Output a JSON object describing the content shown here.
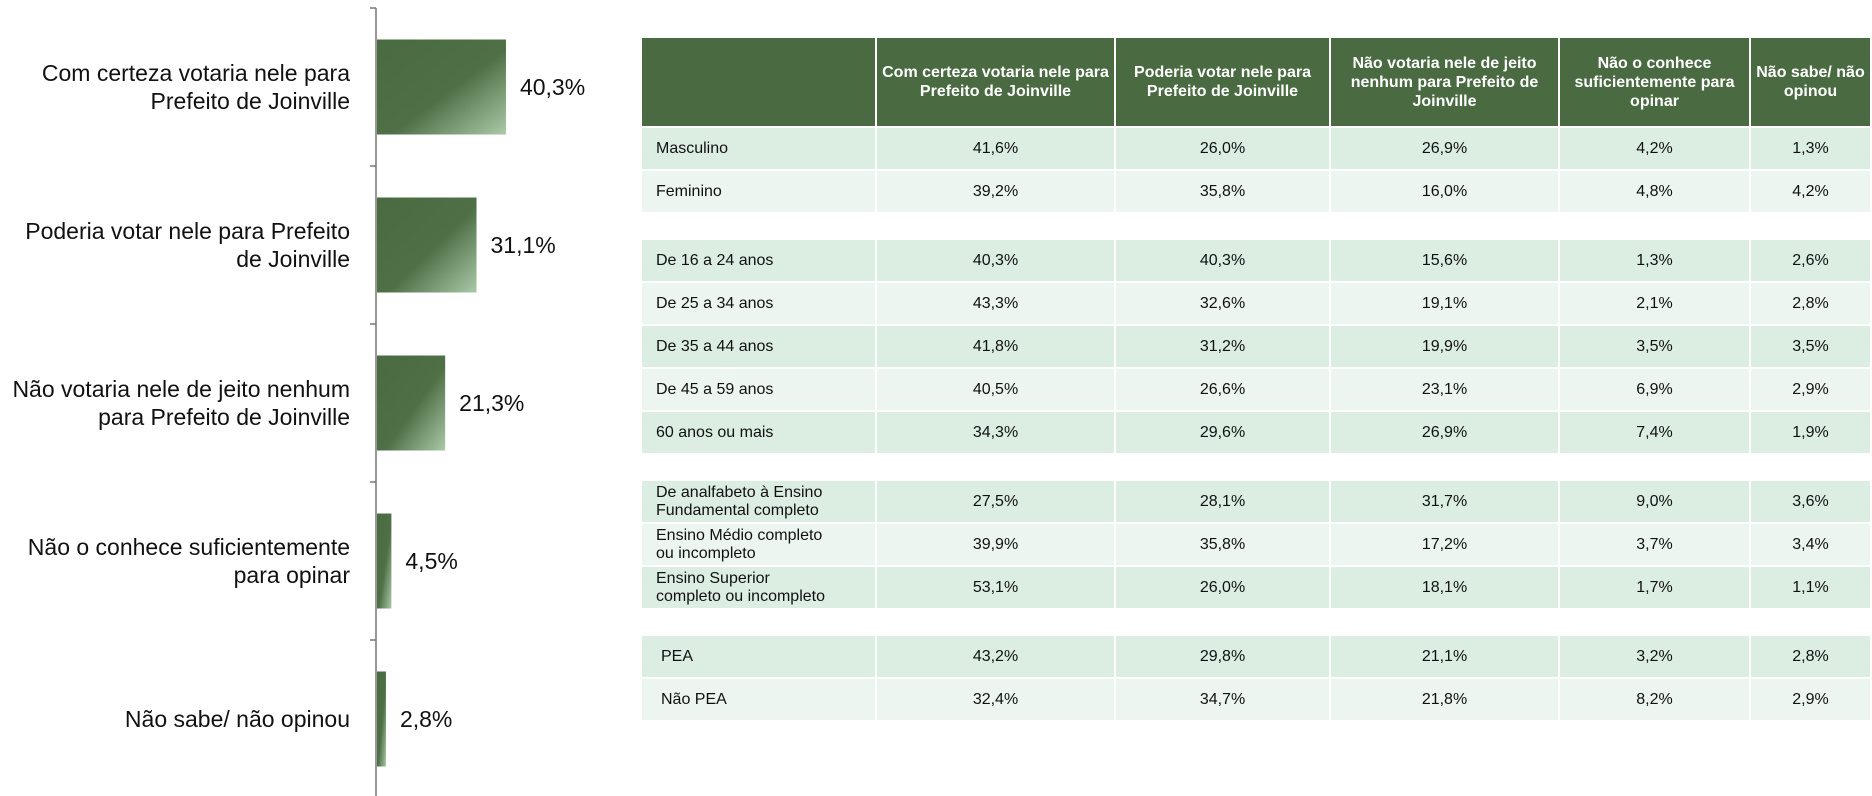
{
  "chart_data": {
    "type": "bar",
    "orientation": "horizontal",
    "categories": [
      "Com certeza votaria nele para Prefeito de Joinville",
      "Poderia votar nele para Prefeito de Joinville",
      "Não votaria nele de jeito nenhum para Prefeito de Joinville",
      "Não o conhece suficientemente para opinar",
      "Não sabe/ não opinou"
    ],
    "values": [
      40.3,
      31.1,
      21.3,
      4.5,
      2.8
    ],
    "value_labels": [
      "40,3%",
      "31,1%",
      "21,3%",
      "4,5%",
      "2,8%"
    ],
    "color": "#4a6b41"
  },
  "table": {
    "columns": [
      "Com certeza votaria nele para Prefeito de Joinville",
      "Poderia votar nele para Prefeito de Joinville",
      "Não votaria nele de jeito nenhum para Prefeito de Joinville",
      "Não o conhece suficientemente para opinar",
      "Não sabe/ não opinou"
    ],
    "groups": [
      [
        {
          "label": "Masculino",
          "values": [
            "41,6%",
            "26,0%",
            "26,9%",
            "4,2%",
            "1,3%"
          ]
        },
        {
          "label": "Feminino",
          "values": [
            "39,2%",
            "35,8%",
            "16,0%",
            "4,8%",
            "4,2%"
          ]
        }
      ],
      [
        {
          "label": "De 16 a 24 anos",
          "values": [
            "40,3%",
            "40,3%",
            "15,6%",
            "1,3%",
            "2,6%"
          ]
        },
        {
          "label": "De 25 a 34 anos",
          "values": [
            "43,3%",
            "32,6%",
            "19,1%",
            "2,1%",
            "2,8%"
          ]
        },
        {
          "label": "De 35 a 44 anos",
          "values": [
            "41,8%",
            "31,2%",
            "19,9%",
            "3,5%",
            "3,5%"
          ]
        },
        {
          "label": "De 45 a 59 anos",
          "values": [
            "40,5%",
            "26,6%",
            "23,1%",
            "6,9%",
            "2,9%"
          ]
        },
        {
          "label": "60 anos ou mais",
          "values": [
            "34,3%",
            "29,6%",
            "26,9%",
            "7,4%",
            "1,9%"
          ]
        }
      ],
      [
        {
          "label": "De analfabeto à Ensino Fundamental completo",
          "values": [
            "27,5%",
            "28,1%",
            "31,7%",
            "9,0%",
            "3,6%"
          ]
        },
        {
          "label": "Ensino Médio completo ou incompleto",
          "values": [
            "39,9%",
            "35,8%",
            "17,2%",
            "3,7%",
            "3,4%"
          ]
        },
        {
          "label": "Ensino Superior completo ou incompleto",
          "values": [
            "53,1%",
            "26,0%",
            "18,1%",
            "1,7%",
            "1,1%"
          ]
        }
      ],
      [
        {
          "label": "PEA",
          "values": [
            "43,2%",
            "29,8%",
            "21,1%",
            "3,2%",
            "2,8%"
          ]
        },
        {
          "label": "Não PEA",
          "values": [
            "32,4%",
            "34,7%",
            "21,8%",
            "8,2%",
            "2,9%"
          ]
        }
      ]
    ]
  }
}
